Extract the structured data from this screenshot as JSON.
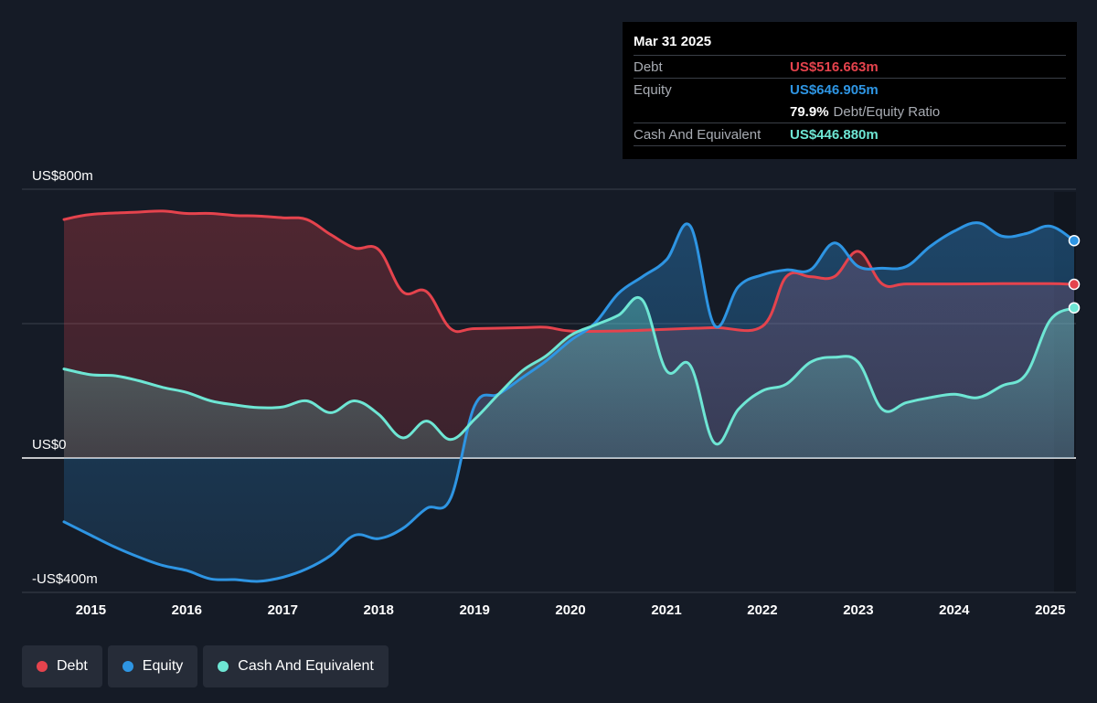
{
  "tooltip": {
    "date": "Mar 31 2025",
    "debt_label": "Debt",
    "debt_value": "US$516.663m",
    "equity_label": "Equity",
    "equity_value": "US$646.905m",
    "ratio_value": "79.9%",
    "ratio_label": "Debt/Equity Ratio",
    "cash_label": "Cash And Equivalent",
    "cash_value": "US$446.880m"
  },
  "legend": [
    {
      "label": "Debt",
      "color": "#e5434d"
    },
    {
      "label": "Equity",
      "color": "#2e95e3"
    },
    {
      "label": "Cash And Equivalent",
      "color": "#6ee6d4"
    }
  ],
  "chart_data": {
    "type": "area",
    "title": "",
    "xlabel": "",
    "ylabel": "",
    "ylim": [
      -400,
      800
    ],
    "y_tick_labels": [
      {
        "value": 800,
        "label": "US$800m"
      },
      {
        "value": 0,
        "label": "US$0"
      },
      {
        "value": -400,
        "label": "-US$400m"
      }
    ],
    "x_tick_labels": [
      "2015",
      "2016",
      "2017",
      "2018",
      "2019",
      "2020",
      "2021",
      "2022",
      "2023",
      "2024",
      "2025"
    ],
    "xlim": [
      2014.72,
      2025.25
    ],
    "grid": "horizontal",
    "series": [
      {
        "name": "Debt",
        "color": "#e5434d",
        "points": [
          [
            2014.72,
            710
          ],
          [
            2015.0,
            725
          ],
          [
            2015.5,
            732
          ],
          [
            2015.75,
            735
          ],
          [
            2016.0,
            728
          ],
          [
            2016.25,
            728
          ],
          [
            2016.5,
            722
          ],
          [
            2016.75,
            720
          ],
          [
            2017.0,
            715
          ],
          [
            2017.25,
            710
          ],
          [
            2017.5,
            665
          ],
          [
            2017.75,
            625
          ],
          [
            2018.0,
            620
          ],
          [
            2018.25,
            495
          ],
          [
            2018.5,
            495
          ],
          [
            2018.75,
            385
          ],
          [
            2019.0,
            385
          ],
          [
            2019.5,
            388
          ],
          [
            2019.75,
            389
          ],
          [
            2020.0,
            378
          ],
          [
            2020.5,
            378
          ],
          [
            2021.0,
            383
          ],
          [
            2021.5,
            388
          ],
          [
            2022.0,
            392
          ],
          [
            2022.25,
            540
          ],
          [
            2022.5,
            540
          ],
          [
            2022.75,
            540
          ],
          [
            2023.0,
            615
          ],
          [
            2023.25,
            518
          ],
          [
            2023.5,
            518
          ],
          [
            2024.0,
            518
          ],
          [
            2024.5,
            519
          ],
          [
            2025.0,
            519
          ],
          [
            2025.25,
            517
          ]
        ]
      },
      {
        "name": "Equity",
        "color": "#2e95e3",
        "points": [
          [
            2014.72,
            -190
          ],
          [
            2015.0,
            -230
          ],
          [
            2015.25,
            -265
          ],
          [
            2015.5,
            -295
          ],
          [
            2015.75,
            -320
          ],
          [
            2016.0,
            -335
          ],
          [
            2016.25,
            -360
          ],
          [
            2016.5,
            -362
          ],
          [
            2016.75,
            -367
          ],
          [
            2017.0,
            -355
          ],
          [
            2017.25,
            -330
          ],
          [
            2017.5,
            -290
          ],
          [
            2017.75,
            -230
          ],
          [
            2018.0,
            -240
          ],
          [
            2018.25,
            -210
          ],
          [
            2018.5,
            -150
          ],
          [
            2018.75,
            -120
          ],
          [
            2019.0,
            155
          ],
          [
            2019.25,
            190
          ],
          [
            2019.5,
            240
          ],
          [
            2019.75,
            290
          ],
          [
            2020.0,
            350
          ],
          [
            2020.25,
            400
          ],
          [
            2020.5,
            490
          ],
          [
            2020.75,
            540
          ],
          [
            2021.0,
            590
          ],
          [
            2021.25,
            690
          ],
          [
            2021.5,
            395
          ],
          [
            2021.75,
            510
          ],
          [
            2022.0,
            545
          ],
          [
            2022.25,
            560
          ],
          [
            2022.5,
            560
          ],
          [
            2022.75,
            640
          ],
          [
            2023.0,
            570
          ],
          [
            2023.25,
            565
          ],
          [
            2023.5,
            570
          ],
          [
            2023.75,
            630
          ],
          [
            2024.0,
            675
          ],
          [
            2024.25,
            700
          ],
          [
            2024.5,
            660
          ],
          [
            2024.75,
            668
          ],
          [
            2025.0,
            690
          ],
          [
            2025.25,
            647
          ]
        ]
      },
      {
        "name": "Cash And Equivalent",
        "color": "#6ee6d4",
        "points": [
          [
            2014.72,
            265
          ],
          [
            2015.0,
            248
          ],
          [
            2015.25,
            245
          ],
          [
            2015.5,
            230
          ],
          [
            2015.75,
            210
          ],
          [
            2016.0,
            195
          ],
          [
            2016.25,
            170
          ],
          [
            2016.5,
            158
          ],
          [
            2016.75,
            150
          ],
          [
            2017.0,
            152
          ],
          [
            2017.25,
            170
          ],
          [
            2017.5,
            135
          ],
          [
            2017.75,
            170
          ],
          [
            2018.0,
            130
          ],
          [
            2018.25,
            60
          ],
          [
            2018.5,
            110
          ],
          [
            2018.75,
            55
          ],
          [
            2019.0,
            115
          ],
          [
            2019.25,
            190
          ],
          [
            2019.5,
            260
          ],
          [
            2019.75,
            305
          ],
          [
            2020.0,
            365
          ],
          [
            2020.25,
            395
          ],
          [
            2020.5,
            425
          ],
          [
            2020.75,
            470
          ],
          [
            2021.0,
            260
          ],
          [
            2021.25,
            275
          ],
          [
            2021.5,
            45
          ],
          [
            2021.75,
            145
          ],
          [
            2022.0,
            200
          ],
          [
            2022.25,
            220
          ],
          [
            2022.5,
            285
          ],
          [
            2022.75,
            300
          ],
          [
            2023.0,
            285
          ],
          [
            2023.25,
            145
          ],
          [
            2023.5,
            165
          ],
          [
            2023.75,
            180
          ],
          [
            2024.0,
            190
          ],
          [
            2024.25,
            180
          ],
          [
            2024.5,
            215
          ],
          [
            2024.75,
            250
          ],
          [
            2025.0,
            410
          ],
          [
            2025.25,
            447
          ]
        ]
      }
    ]
  }
}
